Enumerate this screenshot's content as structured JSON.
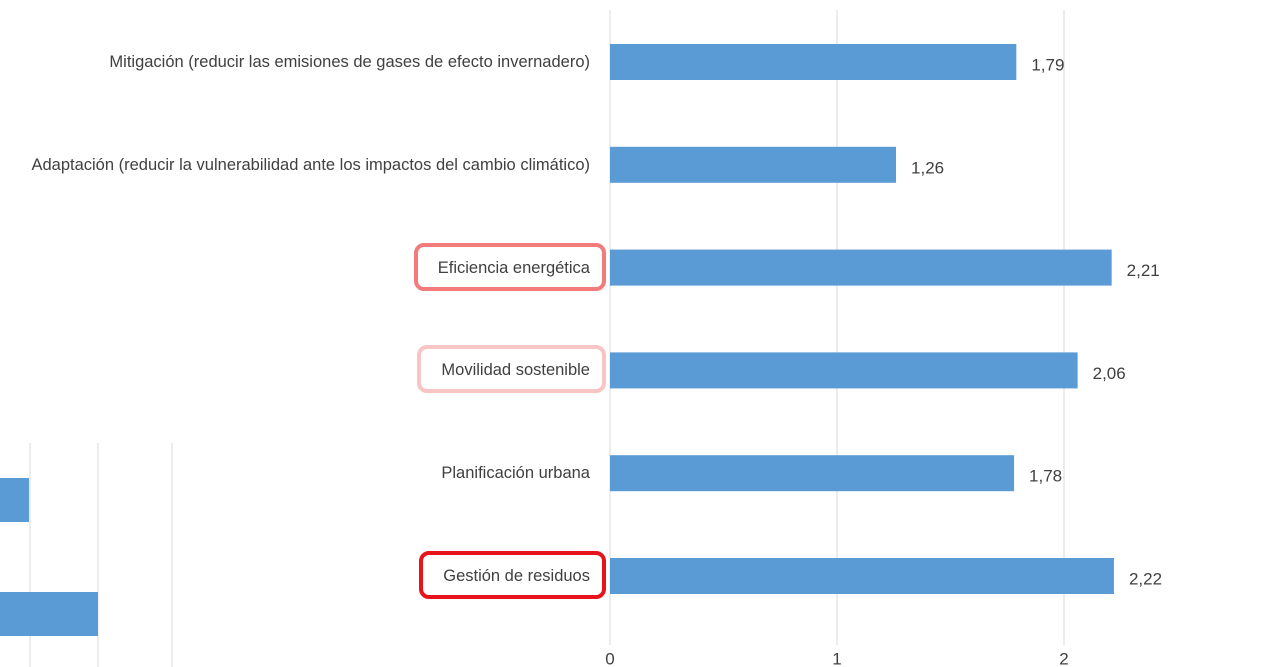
{
  "chart_data": {
    "type": "barh",
    "categories": [
      "Mitigación (reducir las emisiones de gases de efecto invernadero)",
      "Adaptación (reducir la vulnerabilidad ante los impactos del cambio climático)",
      "Eficiencia energética",
      "Movilidad sostenible",
      "Planificación urbana",
      "Gestión de residuos"
    ],
    "values": [
      1.79,
      1.26,
      2.21,
      2.06,
      1.78,
      2.22
    ],
    "value_labels": [
      "1,79",
      "1,26",
      "2,21",
      "2,06",
      "1,78",
      "2,22"
    ],
    "color": "#5b9bd5",
    "label_box_colors": [
      null,
      null,
      "#f27b7b",
      "#f8c4c4",
      null,
      "#e8141b"
    ],
    "xlim": [
      0,
      3
    ],
    "xticks": [
      0,
      1,
      2,
      3
    ],
    "grid": true
  }
}
